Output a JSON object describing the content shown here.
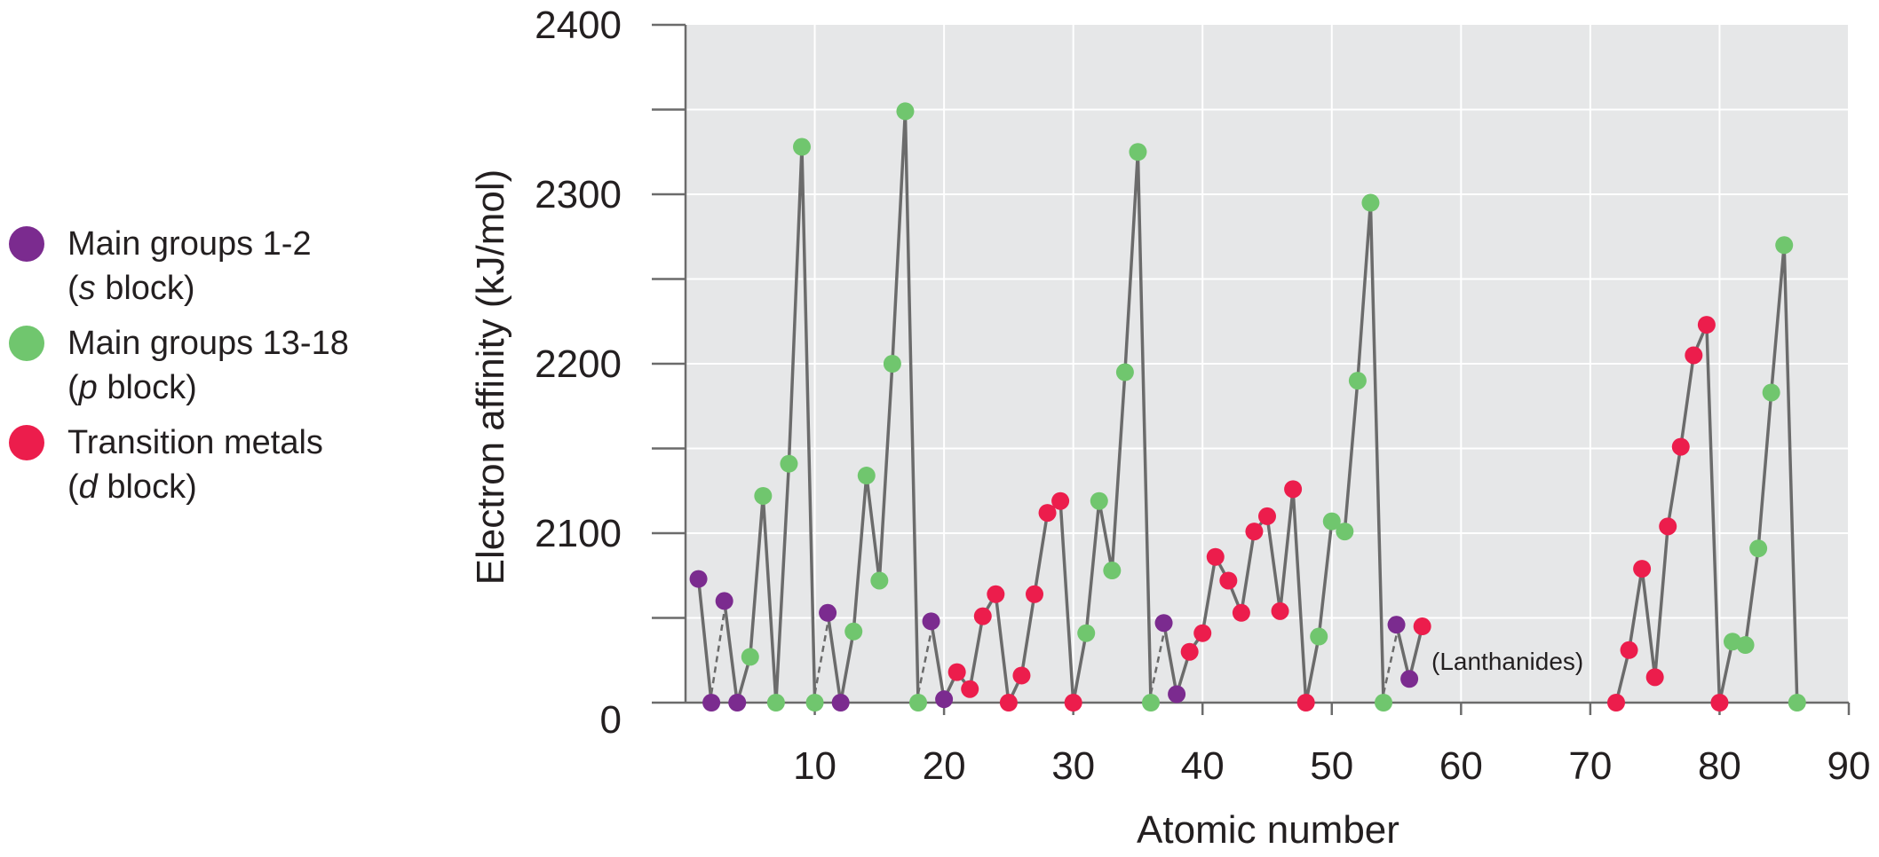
{
  "chart_data": {
    "type": "scatter",
    "xlabel": "Atomic number",
    "ylabel": "Electron affinity (kJ/mol)",
    "xlim": [
      0,
      90
    ],
    "ylim": [
      2000,
      2400
    ],
    "x_ticks": [
      10,
      20,
      30,
      40,
      50,
      60,
      70,
      80,
      90
    ],
    "y_ticks": [
      2100,
      2200,
      2300,
      2400
    ],
    "y_zero_label": "0",
    "grid": true,
    "legend_position": "left",
    "colors": {
      "s": "#7b2b8f",
      "p": "#70c66e",
      "d": "#ec1d4c",
      "line": "#6b6b6b",
      "plot_bg": "#e6e7e8"
    },
    "legend": [
      {
        "key": "s",
        "line1": "Main groups 1-2",
        "line2_prefix": "(",
        "line2_italic": "s",
        "line2_suffix": " block)"
      },
      {
        "key": "p",
        "line1": "Main groups 13-18",
        "line2_prefix": "(",
        "line2_italic": "p",
        "line2_suffix": " block)"
      },
      {
        "key": "d",
        "line1": "Transition metals",
        "line2_prefix": "(",
        "line2_italic": "d",
        "line2_suffix": " block)"
      }
    ],
    "annotation": "(Lanthanides)",
    "segments": [
      [
        [
          1,
          2073,
          "s"
        ],
        [
          2,
          2000,
          "s"
        ]
      ],
      [
        [
          3,
          2060,
          "s"
        ],
        [
          4,
          2000,
          "s"
        ],
        [
          5,
          2027,
          "p"
        ],
        [
          6,
          2122,
          "p"
        ],
        [
          7,
          2000,
          "p"
        ],
        [
          8,
          2141,
          "p"
        ],
        [
          9,
          2328,
          "p"
        ],
        [
          10,
          2000,
          "p"
        ]
      ],
      [
        [
          11,
          2053,
          "s"
        ],
        [
          12,
          2000,
          "s"
        ],
        [
          13,
          2042,
          "p"
        ],
        [
          14,
          2134,
          "p"
        ],
        [
          15,
          2072,
          "p"
        ],
        [
          16,
          2200,
          "p"
        ],
        [
          17,
          2349,
          "p"
        ],
        [
          18,
          2000,
          "p"
        ]
      ],
      [
        [
          19,
          2048,
          "s"
        ],
        [
          20,
          2002,
          "s"
        ],
        [
          21,
          2018,
          "d"
        ],
        [
          22,
          2008,
          "d"
        ],
        [
          23,
          2051,
          "d"
        ],
        [
          24,
          2064,
          "d"
        ],
        [
          25,
          2000,
          "d"
        ],
        [
          26,
          2016,
          "d"
        ],
        [
          27,
          2064,
          "d"
        ],
        [
          28,
          2112,
          "d"
        ],
        [
          29,
          2119,
          "d"
        ],
        [
          30,
          2000,
          "d"
        ],
        [
          31,
          2041,
          "p"
        ],
        [
          32,
          2119,
          "p"
        ],
        [
          33,
          2078,
          "p"
        ],
        [
          34,
          2195,
          "p"
        ],
        [
          35,
          2325,
          "p"
        ],
        [
          36,
          2000,
          "p"
        ]
      ],
      [
        [
          37,
          2047,
          "s"
        ],
        [
          38,
          2005,
          "s"
        ],
        [
          39,
          2030,
          "d"
        ],
        [
          40,
          2041,
          "d"
        ],
        [
          41,
          2086,
          "d"
        ],
        [
          42,
          2072,
          "d"
        ],
        [
          43,
          2053,
          "d"
        ],
        [
          44,
          2101,
          "d"
        ],
        [
          45,
          2110,
          "d"
        ],
        [
          46,
          2054,
          "d"
        ],
        [
          47,
          2126,
          "d"
        ],
        [
          48,
          2000,
          "d"
        ],
        [
          49,
          2039,
          "p"
        ],
        [
          50,
          2107,
          "p"
        ],
        [
          51,
          2101,
          "p"
        ],
        [
          52,
          2190,
          "p"
        ],
        [
          53,
          2295,
          "p"
        ],
        [
          54,
          2000,
          "p"
        ]
      ],
      [
        [
          55,
          2046,
          "s"
        ],
        [
          56,
          2014,
          "s"
        ],
        [
          57,
          2045,
          "d"
        ]
      ],
      [
        [
          72,
          2000,
          "d"
        ],
        [
          73,
          2031,
          "d"
        ],
        [
          74,
          2079,
          "d"
        ],
        [
          75,
          2015,
          "d"
        ],
        [
          76,
          2104,
          "d"
        ],
        [
          77,
          2151,
          "d"
        ],
        [
          78,
          2205,
          "d"
        ],
        [
          79,
          2223,
          "d"
        ],
        [
          80,
          2000,
          "d"
        ],
        [
          81,
          2036,
          "p"
        ],
        [
          82,
          2034,
          "p"
        ],
        [
          83,
          2091,
          "p"
        ],
        [
          84,
          2183,
          "p"
        ],
        [
          85,
          2270,
          "p"
        ],
        [
          86,
          2000,
          "p"
        ]
      ]
    ],
    "dashed_links": [
      [
        2,
        3
      ],
      [
        10,
        11
      ],
      [
        18,
        19
      ],
      [
        36,
        37
      ],
      [
        54,
        55
      ]
    ]
  }
}
